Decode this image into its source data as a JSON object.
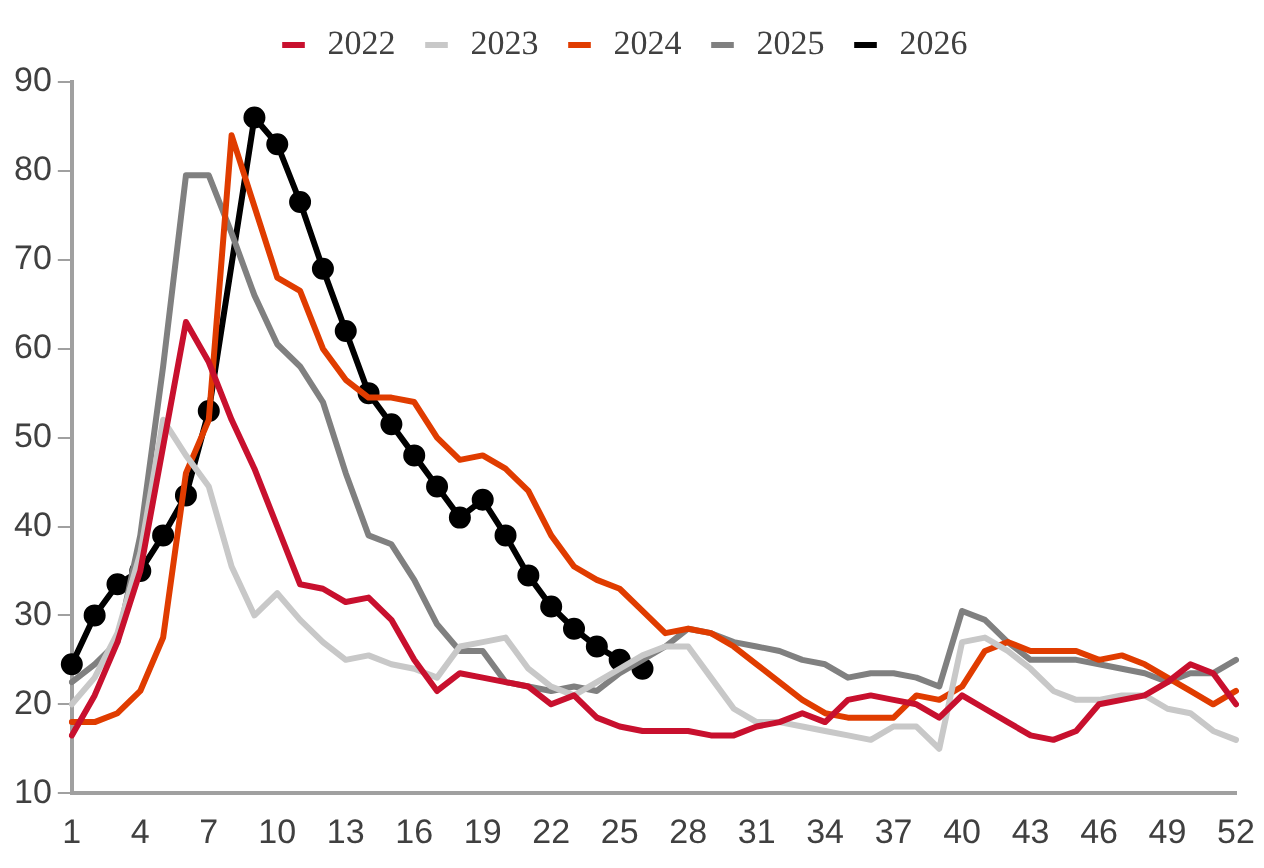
{
  "chart_data": {
    "type": "line",
    "categories": [
      "1",
      null,
      null,
      "4",
      null,
      null,
      "7",
      null,
      null,
      "10",
      null,
      null,
      "13",
      null,
      null,
      "16",
      null,
      null,
      "19",
      null,
      null,
      "22",
      null,
      null,
      "25",
      null,
      null,
      "28",
      null,
      null,
      "31",
      null,
      null,
      "34",
      null,
      null,
      "37",
      null,
      null,
      "40",
      null,
      null,
      "43",
      null,
      null,
      "46",
      null,
      null,
      "49",
      null,
      null,
      "52"
    ],
    "series": [
      {
        "name": "2022",
        "color": "#c8102e",
        "marker": "none",
        "values": [
          16.5,
          21,
          27,
          35,
          49,
          63,
          58.5,
          52,
          46.5,
          40,
          33.5,
          33,
          31.5,
          32,
          29.5,
          25,
          21.5,
          23.5,
          23,
          22.5,
          22,
          20,
          21,
          18.5,
          17.5,
          17,
          17,
          17,
          16.5,
          16.5,
          17.5,
          18,
          19,
          18,
          20.5,
          21,
          20.5,
          20,
          18.5,
          21,
          19.5,
          18,
          16.5,
          16,
          17,
          20,
          20.5,
          21,
          22.5,
          24.5,
          23.5,
          20
        ]
      },
      {
        "name": "2023",
        "color": "#c8c8c8",
        "marker": "none",
        "values": [
          20,
          23,
          28,
          37,
          52,
          48,
          44.5,
          35.5,
          30,
          32.5,
          29.5,
          27,
          25,
          25.5,
          24.5,
          24,
          23,
          26.5,
          27,
          27.5,
          24,
          22,
          21,
          22.5,
          24,
          25.5,
          26.5,
          26.5,
          23,
          19.5,
          18,
          18,
          17.5,
          17,
          16.5,
          16,
          17.5,
          17.5,
          15,
          27,
          27.5,
          26,
          24,
          21.5,
          20.5,
          20.5,
          21,
          21,
          19.5,
          19,
          17,
          16
        ]
      },
      {
        "name": "2024",
        "color": "#e03c00",
        "marker": "none",
        "values": [
          18,
          18,
          19,
          21.5,
          27.5,
          46,
          52,
          84,
          76,
          68,
          66.5,
          60,
          56.5,
          54.5,
          54.5,
          54,
          50,
          47.5,
          48,
          46.5,
          44,
          39,
          35.5,
          34,
          33,
          30.5,
          28,
          28.5,
          28,
          26.5,
          24.5,
          22.5,
          20.5,
          19,
          18.5,
          18.5,
          18.5,
          21,
          20.5,
          22,
          26,
          27,
          26,
          26,
          26,
          25,
          25.5,
          24.5,
          23,
          21.5,
          20,
          21.5
        ]
      },
      {
        "name": "2025",
        "color": "#808080",
        "marker": "none",
        "values": [
          22.5,
          24.5,
          27,
          39,
          58,
          79.5,
          79.5,
          73,
          66,
          60.5,
          58,
          54,
          46,
          39,
          38,
          34,
          29,
          26,
          26,
          22.5,
          22,
          21.5,
          22,
          21.5,
          23.5,
          25,
          26.5,
          28.5,
          28,
          27,
          26.5,
          26,
          25,
          24.5,
          23,
          23.5,
          23.5,
          23,
          22,
          30.5,
          29.5,
          27,
          25,
          25,
          25,
          24.5,
          24,
          23.5,
          22.5,
          23.5,
          23.5,
          25
        ]
      },
      {
        "name": "2026",
        "color": "#000000",
        "marker": "circle",
        "values": [
          24.5,
          30,
          33.5,
          35,
          39,
          43.5,
          53,
          null,
          86,
          83,
          76.5,
          69,
          62,
          55,
          51.5,
          48,
          44.5,
          41,
          43,
          39,
          34.5,
          31,
          28.5,
          26.5,
          25,
          24,
          null,
          null,
          null,
          null,
          null,
          null,
          null,
          null,
          null,
          null,
          null,
          null,
          null,
          null,
          null,
          null,
          null,
          null,
          null,
          null,
          null,
          null,
          null,
          null,
          null,
          null
        ]
      }
    ],
    "ylim": [
      10,
      90
    ],
    "yticks": [
      10,
      20,
      30,
      40,
      50,
      60,
      70,
      80,
      90
    ],
    "grid": false,
    "legend": "top",
    "line_style": "solid"
  }
}
